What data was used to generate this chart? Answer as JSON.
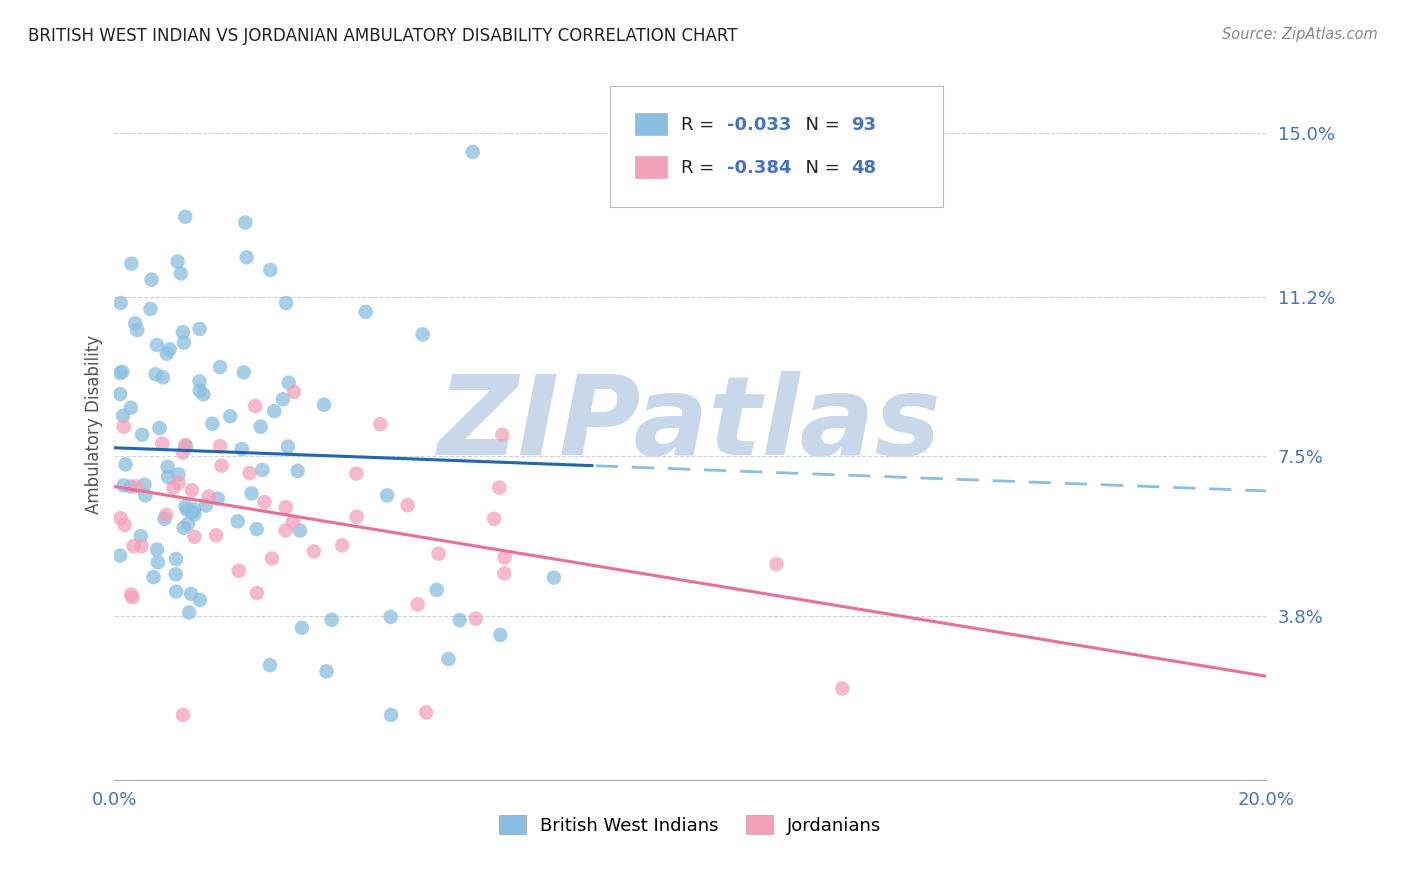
{
  "title": "BRITISH WEST INDIAN VS JORDANIAN AMBULATORY DISABILITY CORRELATION CHART",
  "source": "Source: ZipAtlas.com",
  "ylabel": "Ambulatory Disability",
  "ytick_labels": [
    "15.0%",
    "11.2%",
    "7.5%",
    "3.8%"
  ],
  "ytick_values": [
    0.15,
    0.112,
    0.075,
    0.038
  ],
  "xlim": [
    0.0,
    0.2
  ],
  "ylim": [
    0.0,
    0.165
  ],
  "color_blue": "#89bfe0",
  "color_pink": "#f4a0bb",
  "trendline_blue_solid": "#2266b0",
  "trendline_blue_dashed": "#89bfe0",
  "trendline_pink": "#e87090",
  "watermark": "ZIPatlas",
  "watermark_color": "#c8d8ea",
  "legend_text_color": "#4472c4",
  "legend_label_color": "#333333"
}
